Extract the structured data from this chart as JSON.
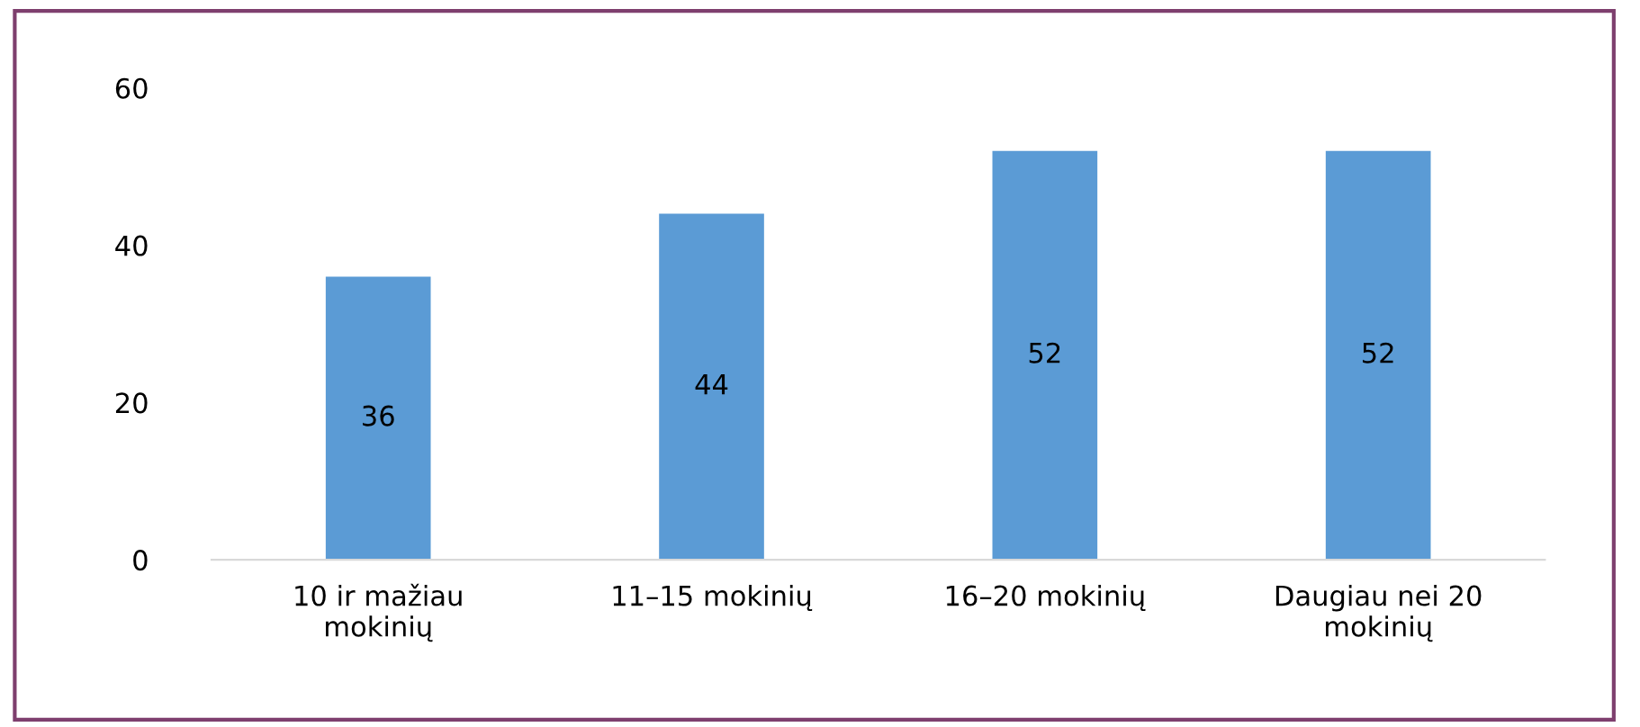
{
  "chart_data": {
    "type": "bar",
    "categories": [
      "10 ir mažiau\nmokinių",
      "11–15 mokinių",
      "16–20 mokinių",
      "Daugiau nei 20\nmokinių"
    ],
    "values": [
      36,
      44,
      52,
      52
    ],
    "color": "#5b9bd5",
    "ylim": [
      0,
      60
    ],
    "yticks": [
      0,
      20,
      40,
      60
    ],
    "data_labels": true,
    "grid": false,
    "legend": false
  }
}
